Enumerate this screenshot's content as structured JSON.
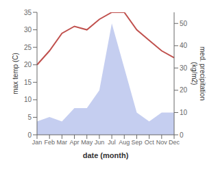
{
  "chart_data": {
    "type": "line",
    "categories": [
      "Jan",
      "Feb",
      "Mar",
      "Apr",
      "May",
      "Jun",
      "Jul",
      "Aug",
      "Sep",
      "Oct",
      "Nov",
      "Dec"
    ],
    "series": [
      {
        "type": "area",
        "color": "#c5cef0",
        "axis": "y2",
        "values": [
          6,
          8,
          6,
          12,
          12,
          20,
          50,
          30,
          10,
          6,
          10,
          10
        ]
      },
      {
        "type": "line",
        "color": "#c0504d",
        "values": [
          20,
          24,
          29,
          31,
          30,
          33,
          35,
          35,
          30,
          27,
          24,
          22
        ]
      }
    ],
    "ylim": [
      0,
      35
    ],
    "yticks": [
      0,
      5,
      10,
      15,
      20,
      25,
      30,
      35
    ],
    "y2lim": [
      0,
      55
    ],
    "y2ticks": [
      0,
      10,
      20,
      30,
      40,
      50
    ],
    "xlabel": "date (month)",
    "ylabel": "max temp (C)",
    "y2label": "med. precipitation\n(kg/m2)",
    "grid": false
  }
}
